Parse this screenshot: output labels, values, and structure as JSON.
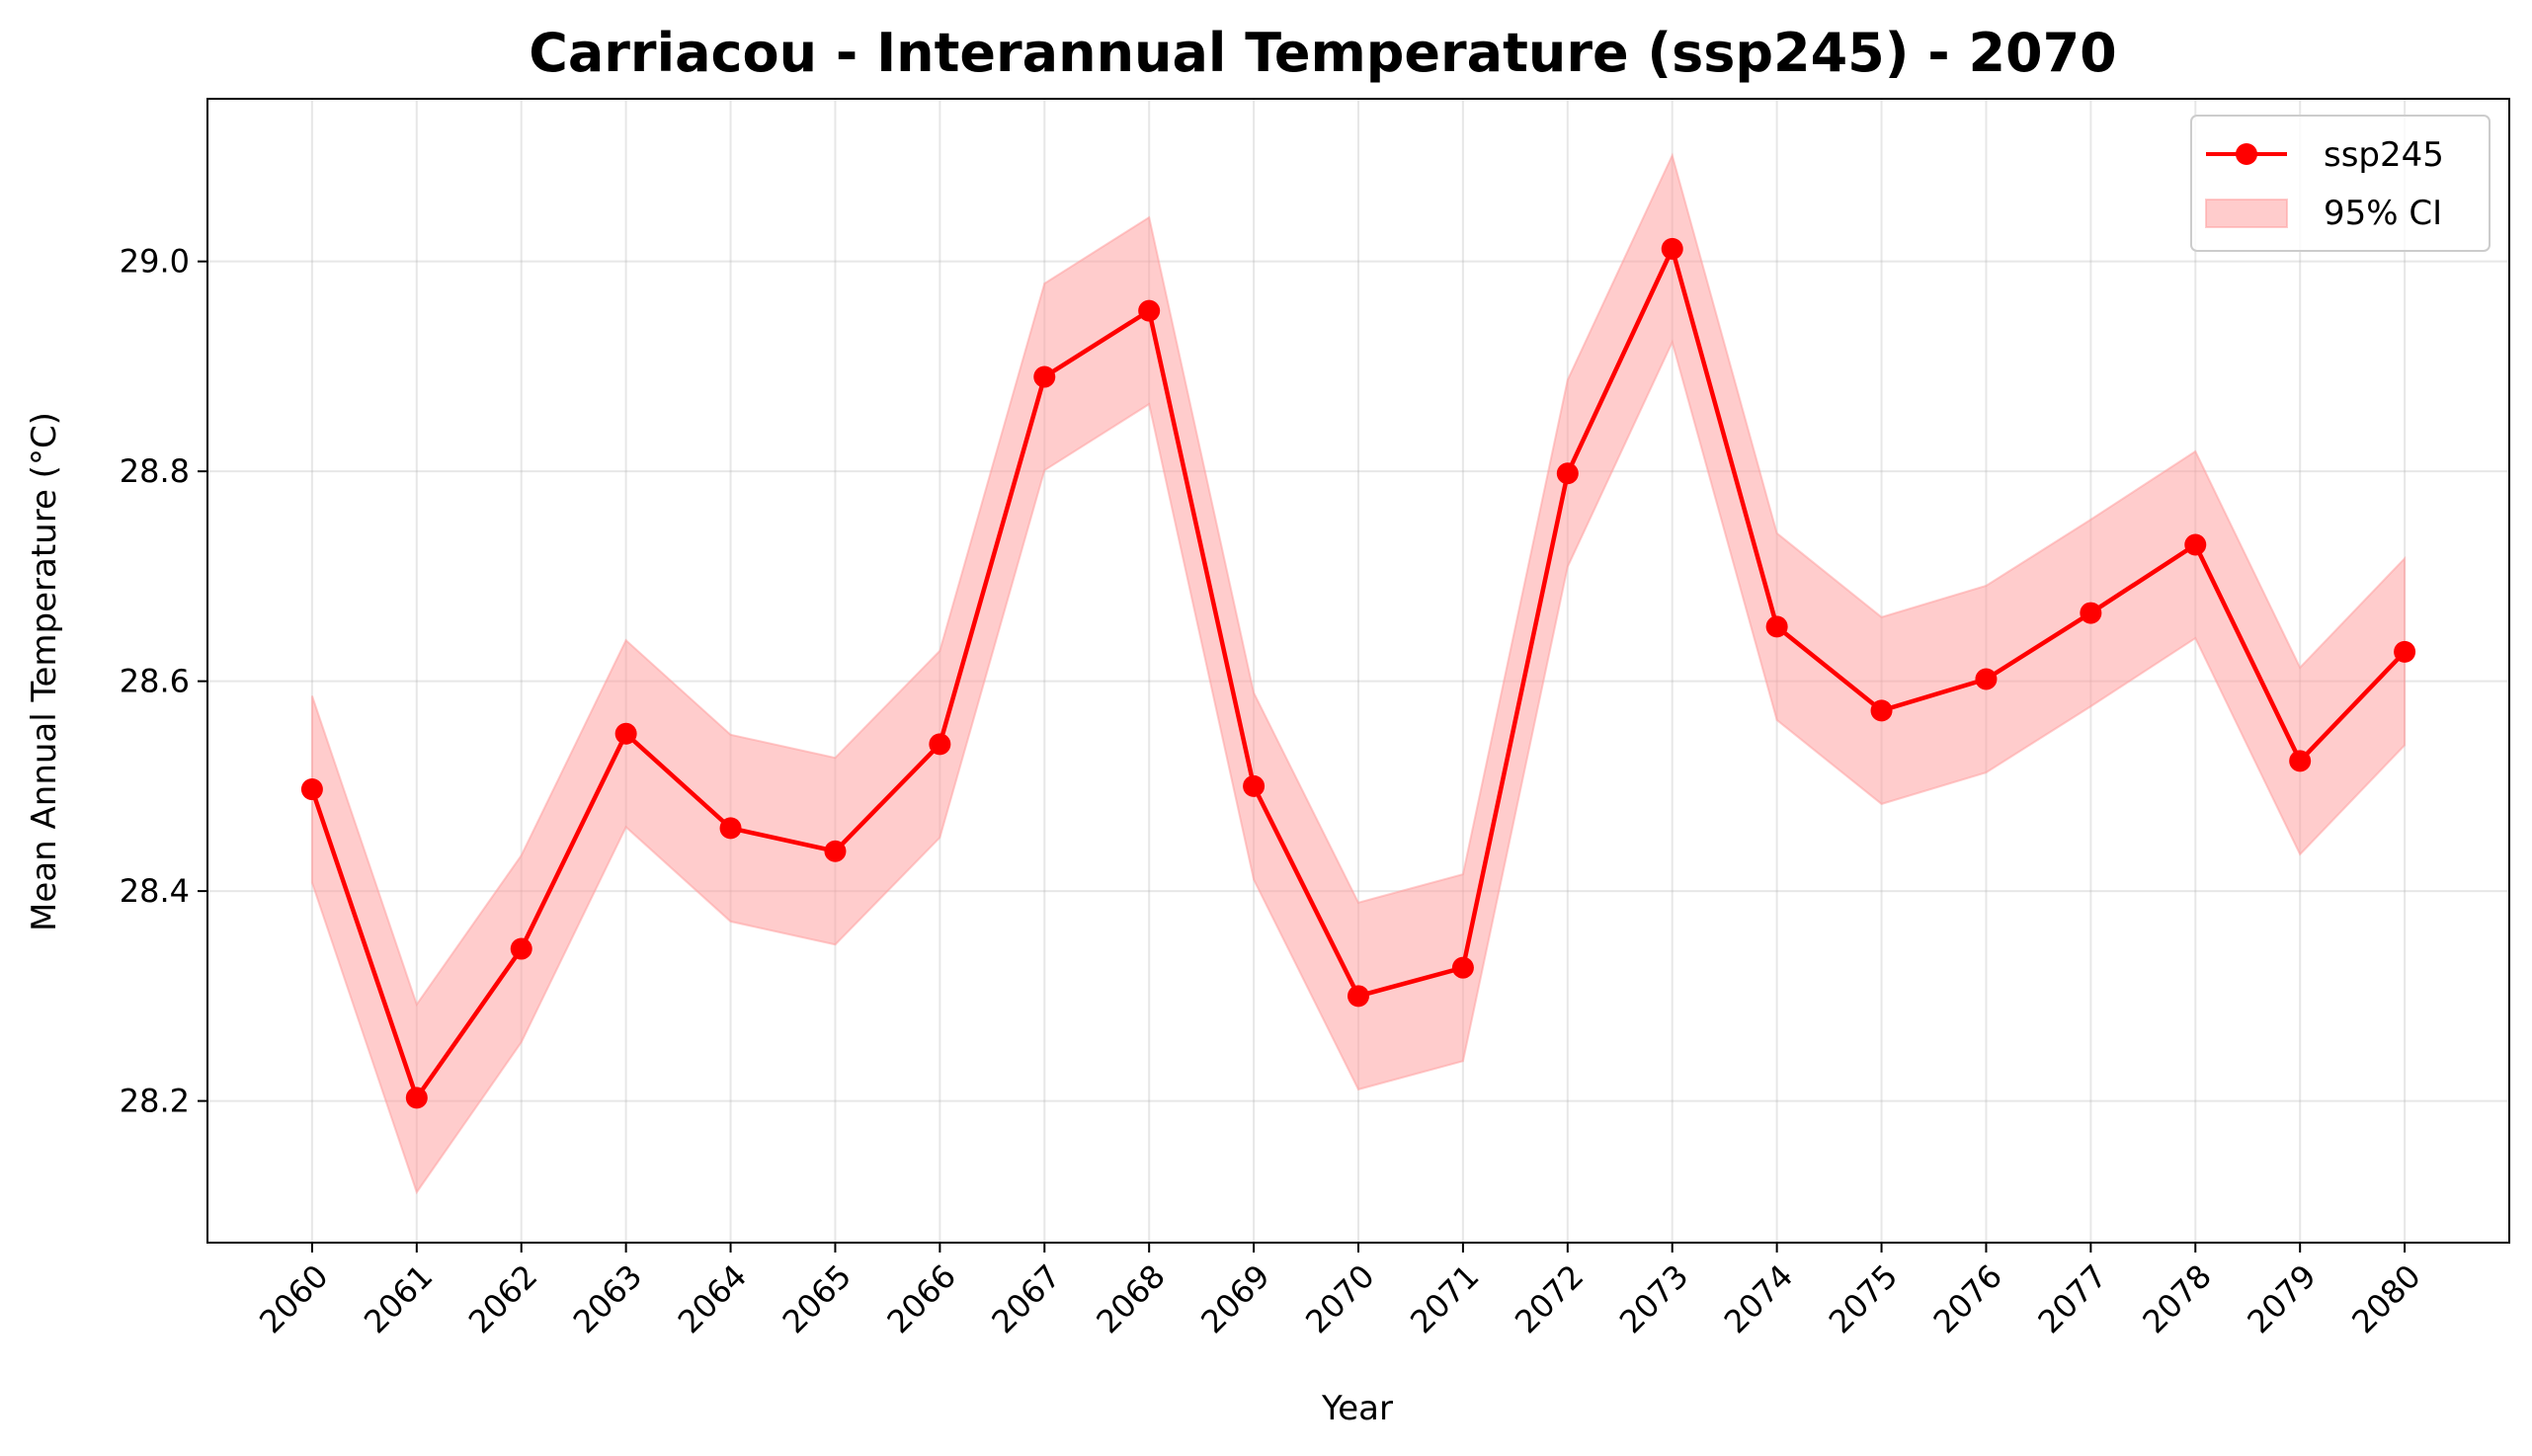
{
  "chart_data": {
    "type": "line",
    "title": "Carriacou - Interannual Temperature (ssp245) - 2070",
    "xlabel": "Year",
    "ylabel": "Mean Annual Temperature (°C)",
    "x": [
      2060,
      2061,
      2062,
      2063,
      2064,
      2065,
      2066,
      2067,
      2068,
      2069,
      2070,
      2071,
      2072,
      2073,
      2074,
      2075,
      2076,
      2077,
      2078,
      2079,
      2080
    ],
    "series": [
      {
        "name": "ssp245",
        "color": "#ff0000",
        "values": [
          28.497,
          28.203,
          28.345,
          28.55,
          28.46,
          28.438,
          28.54,
          28.89,
          28.953,
          28.5,
          28.3,
          28.327,
          28.798,
          29.012,
          28.652,
          28.572,
          28.602,
          28.665,
          28.73,
          28.524,
          28.628
        ]
      }
    ],
    "ci": {
      "name": "95% CI",
      "color": "#ff9999",
      "lower": [
        28.408,
        28.113,
        28.256,
        28.461,
        28.371,
        28.349,
        28.451,
        28.801,
        28.864,
        28.411,
        28.211,
        28.238,
        28.709,
        28.923,
        28.563,
        28.483,
        28.513,
        28.576,
        28.641,
        28.435,
        28.539
      ],
      "upper": [
        28.586,
        28.292,
        28.434,
        28.639,
        28.549,
        28.527,
        28.629,
        28.979,
        29.042,
        28.589,
        28.389,
        28.416,
        28.887,
        29.101,
        28.741,
        28.661,
        28.691,
        28.754,
        28.819,
        28.613,
        28.717
      ]
    },
    "ylim": [
      28.065,
      29.155
    ],
    "xlim": [
      2059.0,
      2081.0
    ],
    "yticks": [
      28.2,
      28.4,
      28.6,
      28.8,
      29.0
    ],
    "ytick_labels": [
      "28.2",
      "28.4",
      "28.6",
      "28.8",
      "29.0"
    ],
    "xtick_labels": [
      "2060",
      "2061",
      "2062",
      "2063",
      "2064",
      "2065",
      "2066",
      "2067",
      "2068",
      "2069",
      "2070",
      "2071",
      "2072",
      "2073",
      "2074",
      "2075",
      "2076",
      "2077",
      "2078",
      "2079",
      "2080"
    ],
    "grid": true,
    "legend_position": "top-right"
  }
}
